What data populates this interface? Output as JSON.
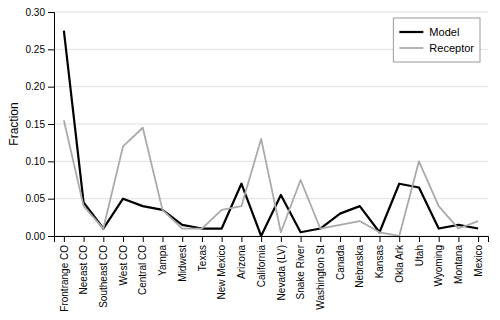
{
  "chart_data": {
    "type": "line",
    "categories": [
      "Frontrange CO",
      "Neeast CO",
      "Southeast CO",
      "West CO",
      "Central CO",
      "Yampa",
      "Midwest",
      "Texas",
      "New Mexico",
      "Arizona",
      "California",
      "Nevada (LV)",
      "Snake River",
      "Washington St",
      "Canada",
      "Nebraska",
      "Kansas",
      "Okla Ark",
      "Utah",
      "Wyoming",
      "Montana",
      "Mexico"
    ],
    "series": [
      {
        "name": "Model",
        "color": "#000000",
        "values": [
          0.275,
          0.045,
          0.01,
          0.05,
          0.04,
          0.035,
          0.015,
          0.01,
          0.01,
          0.07,
          0.0,
          0.055,
          0.005,
          0.01,
          0.03,
          0.04,
          0.005,
          0.07,
          0.065,
          0.01,
          0.015,
          0.01
        ]
      },
      {
        "name": "Receptor",
        "color": "#aaaaaa",
        "values": [
          0.155,
          0.04,
          0.01,
          0.12,
          0.145,
          0.035,
          0.01,
          0.01,
          0.035,
          0.04,
          0.13,
          0.005,
          0.075,
          0.01,
          0.015,
          0.02,
          0.005,
          0.0,
          0.1,
          0.04,
          0.01,
          0.02
        ]
      }
    ],
    "y_label": "Fraction",
    "ylim": [
      0,
      0.3
    ],
    "yticks": [
      {
        "value": 0,
        "label": "0.00"
      },
      0.05,
      {
        "value": 0.1,
        "label": "0.10"
      },
      0.15,
      {
        "value": 0.2,
        "label": "0.20"
      },
      0.25,
      {
        "value": 0.3,
        "label": "0.30"
      }
    ],
    "grid": true,
    "legend": "upper-right"
  }
}
